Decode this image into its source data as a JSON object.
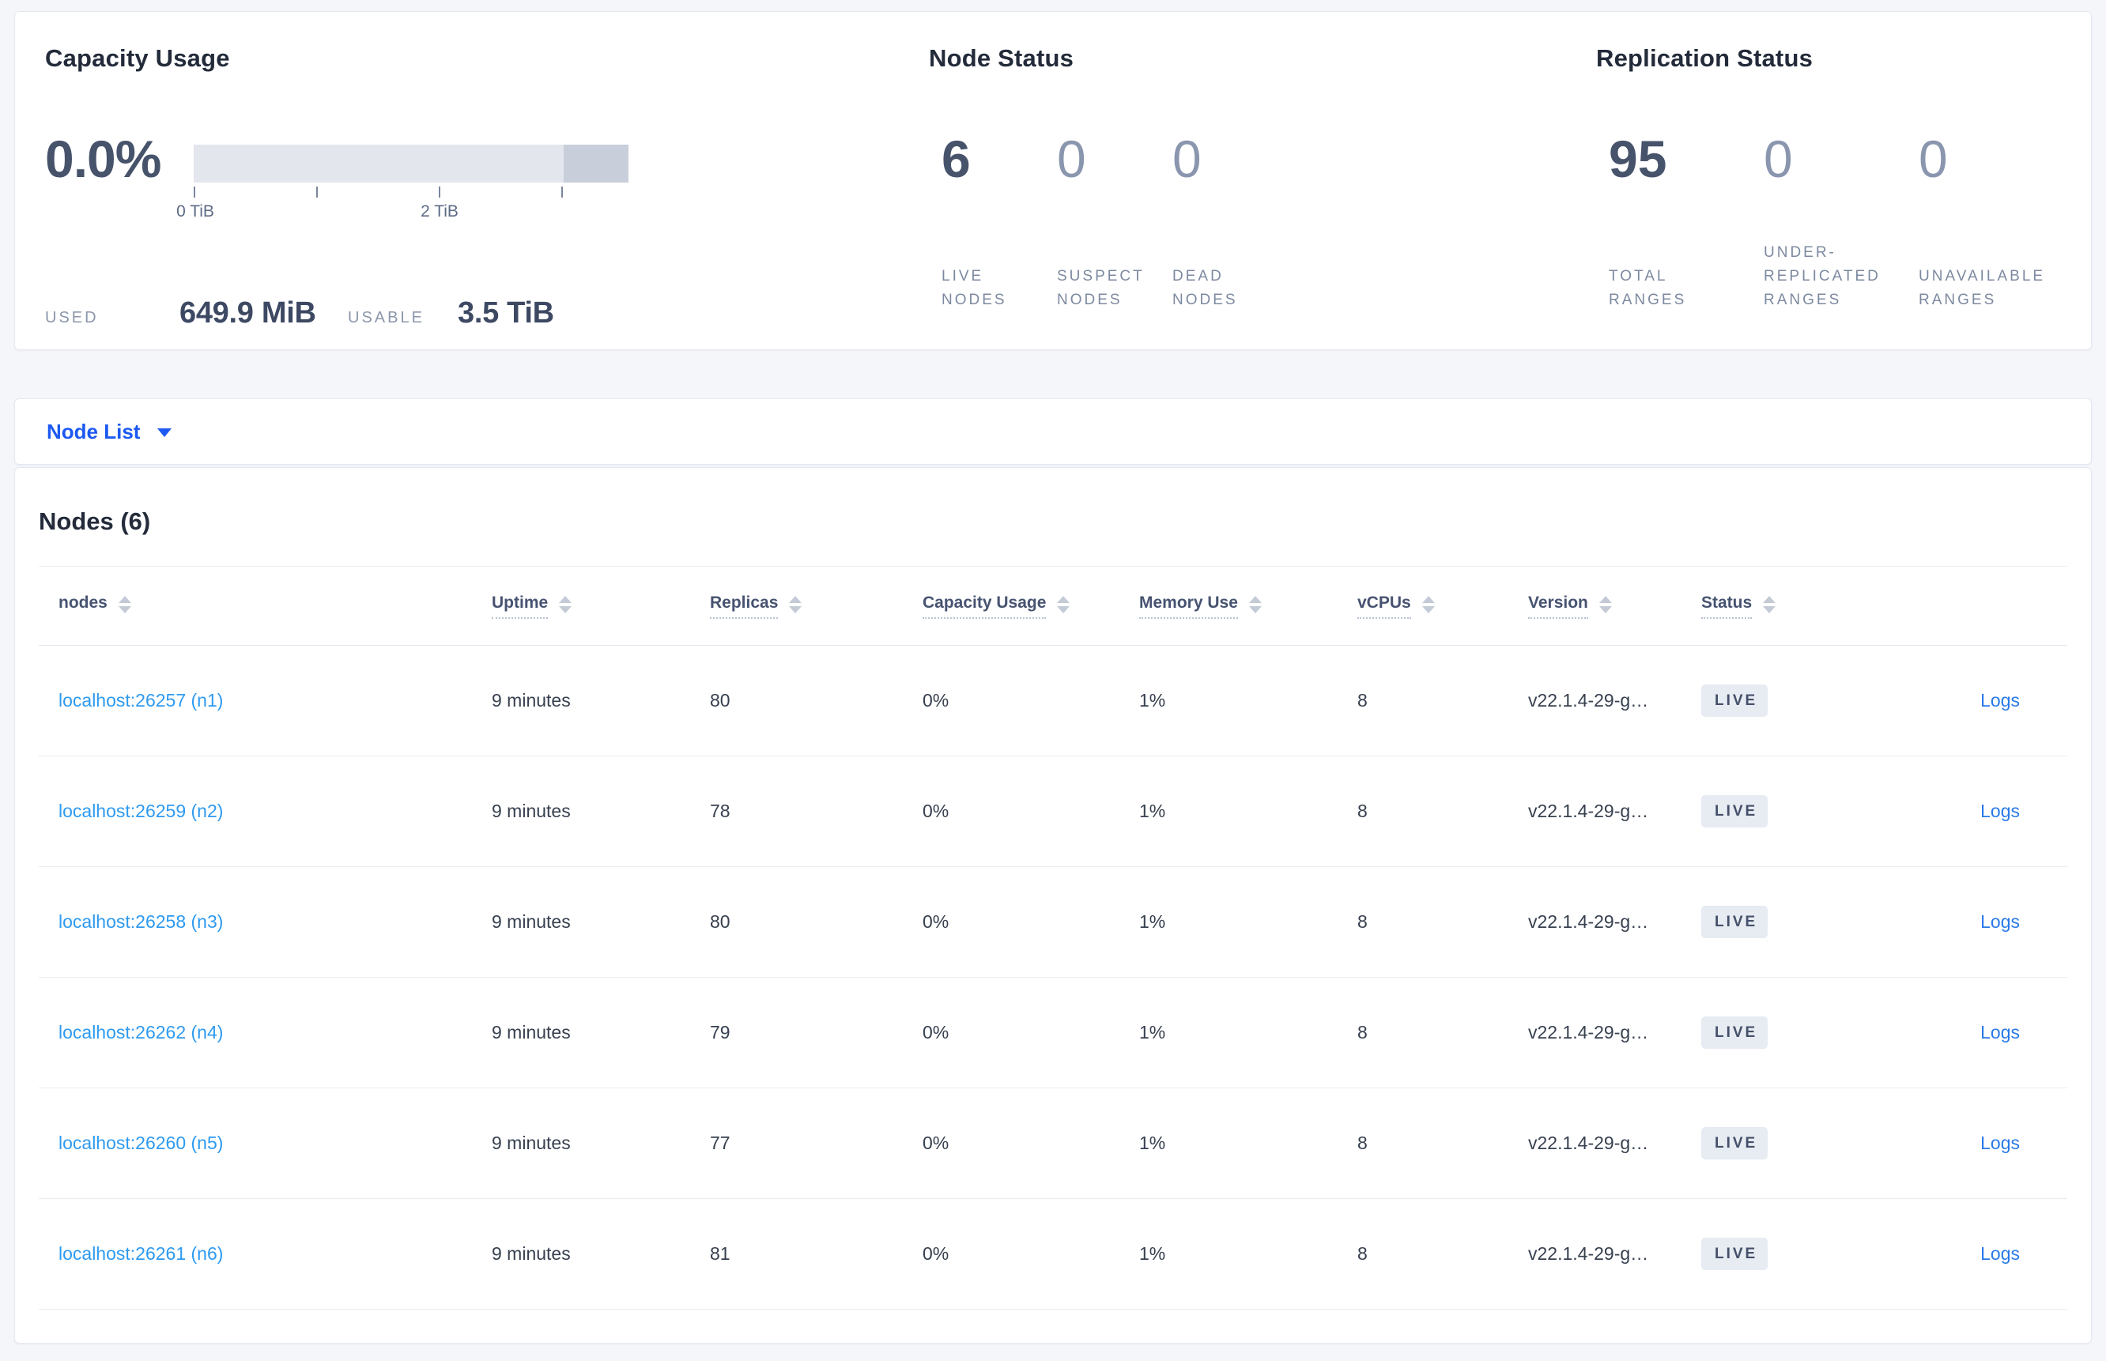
{
  "colors": {
    "page_bg": "#f4f6fa",
    "card_border": "#e5e8ef",
    "title_text": "#232b3a",
    "stat_strong": "#46536b",
    "stat_muted": "#8a96ae",
    "stat_label": "#7d89a0",
    "node_link_blue": "#2e9af0",
    "selector_blue": "#1b59f2",
    "logs_blue": "#2979e8",
    "badge_bg": "#e7ebf2",
    "badge_text": "#44506a",
    "bar_light": "#e3e6ec",
    "bar_dark": "#c9cedb"
  },
  "summary": {
    "capacity": {
      "title": "Capacity Usage",
      "percent": "0.0%",
      "bar_segments": [
        {
          "name": "usable",
          "pct": 85
        },
        {
          "name": "other",
          "pct": 15
        }
      ],
      "tick_labels": [
        "0 TiB",
        "2 TiB"
      ],
      "used_label": "USED",
      "used_value": "649.9 MiB",
      "usable_label": "USABLE",
      "usable_value": "3.5 TiB"
    },
    "node_status": {
      "title": "Node Status",
      "stats": [
        {
          "value": "6",
          "label": "LIVE NODES",
          "emphasis": "strong"
        },
        {
          "value": "0",
          "label": "SUSPECT NODES",
          "emphasis": "muted"
        },
        {
          "value": "0",
          "label": "DEAD NODES",
          "emphasis": "muted"
        }
      ]
    },
    "replication_status": {
      "title": "Replication Status",
      "stats": [
        {
          "value": "95",
          "label": "TOTAL RANGES",
          "emphasis": "strong"
        },
        {
          "value": "0",
          "label": "UNDER-REPLICATED RANGES",
          "emphasis": "muted"
        },
        {
          "value": "0",
          "label": "UNAVAILABLE RANGES",
          "emphasis": "muted"
        }
      ]
    }
  },
  "view_selector": {
    "label": "Node List"
  },
  "nodes_table": {
    "title": "Nodes (6)",
    "columns": [
      {
        "label": "nodes",
        "tooltip": false
      },
      {
        "label": "Uptime",
        "tooltip": true
      },
      {
        "label": "Replicas",
        "tooltip": true
      },
      {
        "label": "Capacity Usage",
        "tooltip": true
      },
      {
        "label": "Memory Use",
        "tooltip": true
      },
      {
        "label": "vCPUs",
        "tooltip": true
      },
      {
        "label": "Version",
        "tooltip": true
      },
      {
        "label": "Status",
        "tooltip": true
      }
    ],
    "logs_label": "Logs",
    "rows": [
      {
        "node": "localhost:26257 (n1)",
        "uptime": "9 minutes",
        "replicas": "80",
        "capacity_usage": "0%",
        "memory_use": "1%",
        "vcpus": "8",
        "version": "v22.1.4-29-g…",
        "status": "LIVE"
      },
      {
        "node": "localhost:26259 (n2)",
        "uptime": "9 minutes",
        "replicas": "78",
        "capacity_usage": "0%",
        "memory_use": "1%",
        "vcpus": "8",
        "version": "v22.1.4-29-g…",
        "status": "LIVE"
      },
      {
        "node": "localhost:26258 (n3)",
        "uptime": "9 minutes",
        "replicas": "80",
        "capacity_usage": "0%",
        "memory_use": "1%",
        "vcpus": "8",
        "version": "v22.1.4-29-g…",
        "status": "LIVE"
      },
      {
        "node": "localhost:26262 (n4)",
        "uptime": "9 minutes",
        "replicas": "79",
        "capacity_usage": "0%",
        "memory_use": "1%",
        "vcpus": "8",
        "version": "v22.1.4-29-g…",
        "status": "LIVE"
      },
      {
        "node": "localhost:26260 (n5)",
        "uptime": "9 minutes",
        "replicas": "77",
        "capacity_usage": "0%",
        "memory_use": "1%",
        "vcpus": "8",
        "version": "v22.1.4-29-g…",
        "status": "LIVE"
      },
      {
        "node": "localhost:26261 (n6)",
        "uptime": "9 minutes",
        "replicas": "81",
        "capacity_usage": "0%",
        "memory_use": "1%",
        "vcpus": "8",
        "version": "v22.1.4-29-g…",
        "status": "LIVE"
      }
    ]
  }
}
